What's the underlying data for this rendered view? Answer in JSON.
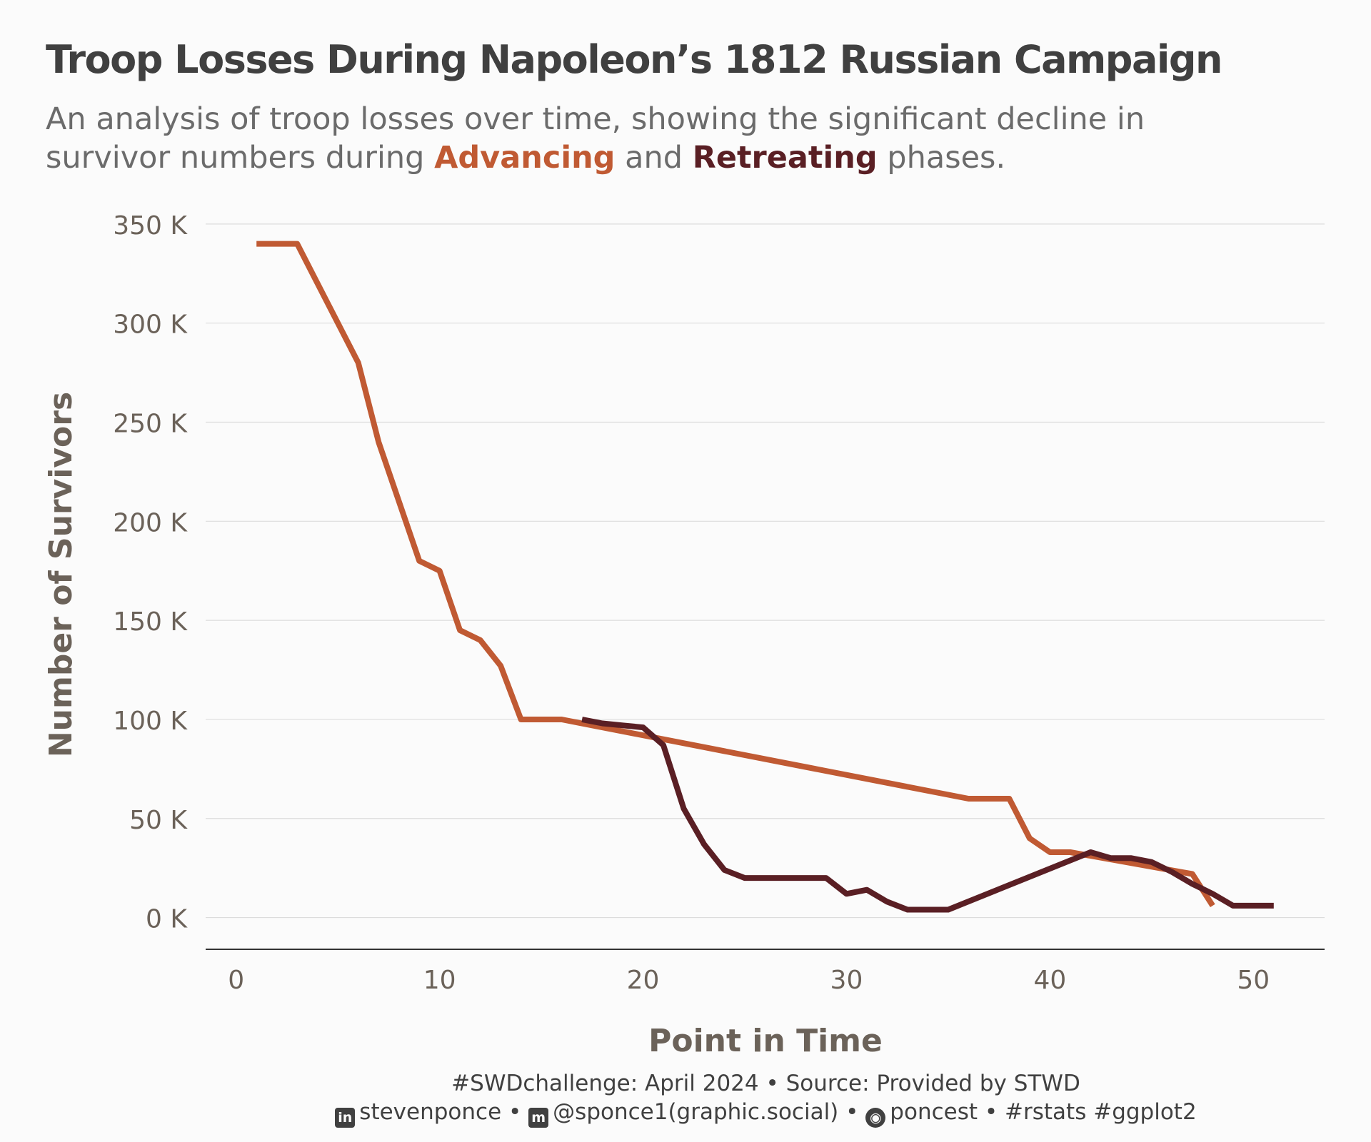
{
  "title": "Troop Losses During Napoleon’s 1812 Russian Campaign",
  "subtitle": {
    "prefix": "An analysis of troop losses over time, showing the significant decline in survivor numbers during",
    "advancing": "Advancing",
    "middle": "and",
    "retreating": "Retreating",
    "suffix": "phases."
  },
  "colors": {
    "advancing": "#c05a33",
    "retreating": "#5a1f24",
    "axis_text": "#6b6259"
  },
  "caption": {
    "line1": "#SWDchallenge: April 2024 • Source: Provided by STWD",
    "linkedin_icon": "linkedin-icon",
    "linkedin": "stevenponce",
    "sep1": "•",
    "mastodon_icon": "mastodon-icon",
    "mastodon": "@sponce1(graphic.social)",
    "sep2": "•",
    "github_icon": "github-icon",
    "github": "poncest",
    "sep3": "•",
    "tags": "#rstats #ggplot2"
  },
  "chart_data": {
    "type": "line",
    "xlabel": "Point in Time",
    "ylabel": "Number of Survivors",
    "xlim": [
      -1.5,
      53.5
    ],
    "ylim": [
      -16000,
      355000
    ],
    "x_ticks": [
      0,
      10,
      20,
      30,
      40,
      50
    ],
    "y_ticks": [
      0,
      50000,
      100000,
      150000,
      200000,
      250000,
      300000,
      350000
    ],
    "y_tick_labels": [
      "0 K",
      "50 K",
      "100 K",
      "150 K",
      "200 K",
      "250 K",
      "300 K",
      "350 K"
    ],
    "grid": "horizontal",
    "legend": "none (colored words in subtitle)",
    "series": [
      {
        "name": "Advancing",
        "color": "#c05a33",
        "x": [
          1,
          2,
          3,
          4,
          5,
          6,
          7,
          8,
          9,
          10,
          11,
          12,
          13,
          14,
          15,
          16,
          36,
          37,
          38,
          39,
          40,
          41,
          47,
          48
        ],
        "y": [
          340000,
          340000,
          340000,
          320000,
          300000,
          280000,
          240000,
          210000,
          180000,
          175000,
          145000,
          140000,
          127100,
          100000,
          100000,
          100000,
          60000,
          60000,
          60000,
          40000,
          33000,
          33000,
          22000,
          6000
        ]
      },
      {
        "name": "Retreating",
        "color": "#5a1f24",
        "x": [
          17,
          18,
          19,
          20,
          21,
          22,
          23,
          24,
          25,
          26,
          27,
          28,
          29,
          30,
          31,
          32,
          33,
          34,
          35,
          42,
          43,
          44,
          45,
          46,
          47,
          48,
          49,
          50,
          51
        ],
        "y": [
          100000,
          98000,
          97000,
          96000,
          87000,
          55000,
          37000,
          24000,
          20000,
          20000,
          20000,
          20000,
          20000,
          12000,
          14000,
          8000,
          4000,
          4000,
          4000,
          33000,
          30000,
          30000,
          28000,
          23000,
          17000,
          12000,
          6000,
          6000,
          6000
        ]
      }
    ]
  }
}
